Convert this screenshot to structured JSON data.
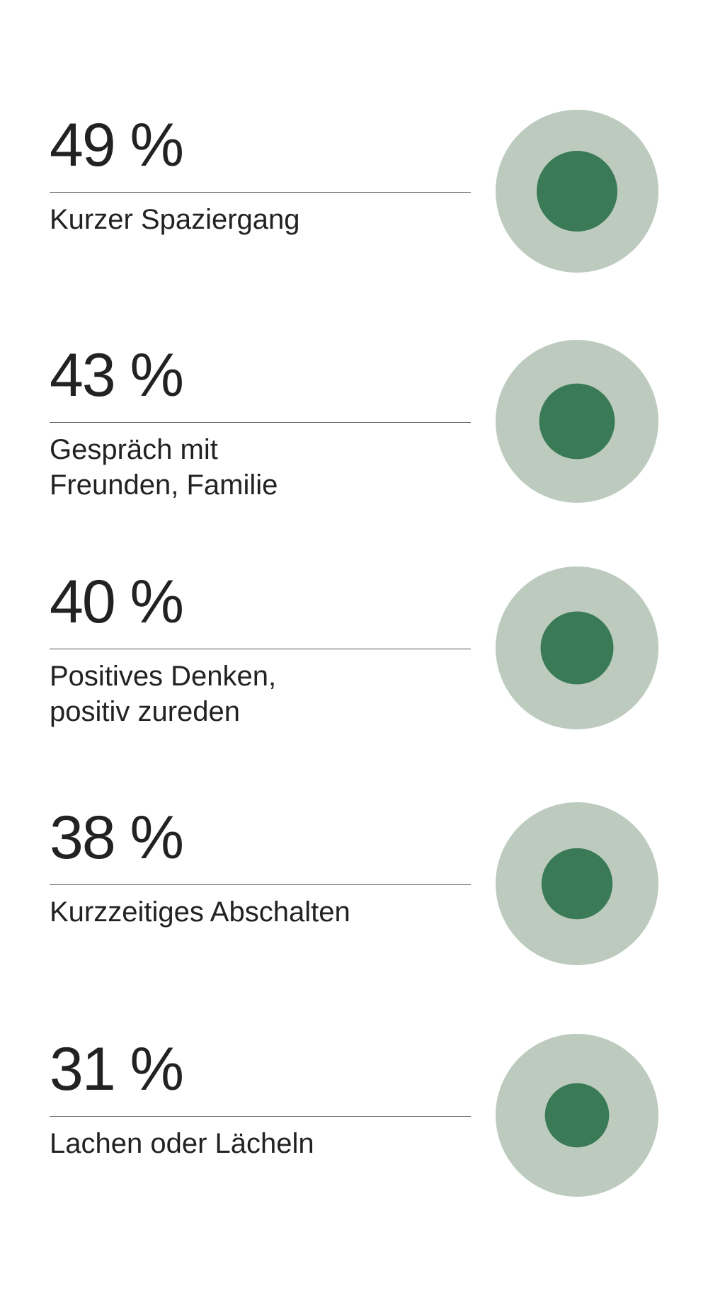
{
  "chart_data": {
    "type": "bubble-list",
    "items": [
      {
        "value": 49,
        "value_label": "49 %",
        "label": "Kurzer Spaziergang"
      },
      {
        "value": 43,
        "value_label": "43 %",
        "label": "Gespräch mit\nFreunden, Familie"
      },
      {
        "value": 40,
        "value_label": "40 %",
        "label": "Positives Denken,\npositiv zureden"
      },
      {
        "value": 38,
        "value_label": "38 %",
        "label": "Kurzzeitiges Abschalten"
      },
      {
        "value": 31,
        "value_label": "31 %",
        "label": "Lachen oder Lächeln"
      }
    ],
    "colors": {
      "outer_circle": "#bccbbe",
      "inner_circle": "#3a7a56",
      "text": "#222222",
      "rule": "#555555"
    }
  }
}
